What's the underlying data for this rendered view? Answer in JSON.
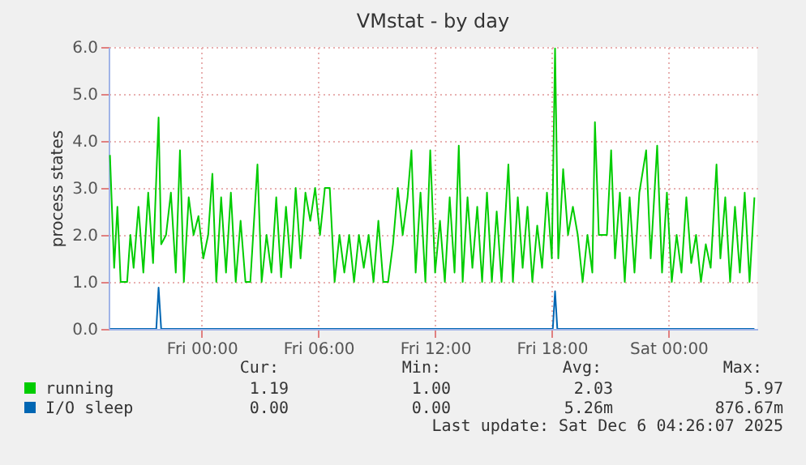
{
  "chart_data": {
    "type": "line",
    "title": "VMstat - by day",
    "ylabel": "process states",
    "xlim": [
      "2025-12-04T19:13",
      "2025-12-06T04:34"
    ],
    "xticks": [
      {
        "value": "2025-12-05T00:00",
        "label": "Fri 00:00"
      },
      {
        "value": "2025-12-05T06:00",
        "label": "Fri 06:00"
      },
      {
        "value": "2025-12-05T12:00",
        "label": "Fri 12:00"
      },
      {
        "value": "2025-12-05T18:00",
        "label": "Fri 18:00"
      },
      {
        "value": "2025-12-06T00:00",
        "label": "Sat 00:00"
      }
    ],
    "ylim": [
      0,
      6
    ],
    "yticks": [
      {
        "value": 0,
        "label": "0.0"
      },
      {
        "value": 1,
        "label": "1.0"
      },
      {
        "value": 2,
        "label": "2.0"
      },
      {
        "value": 3,
        "label": "3.0"
      },
      {
        "value": 4,
        "label": "4.0"
      },
      {
        "value": 5,
        "label": "5.0"
      },
      {
        "value": 6,
        "label": "6.0"
      }
    ],
    "grid": true,
    "legend": "bottom",
    "series": [
      {
        "name": "running",
        "color": "#00cc00",
        "x": [
          "2025-12-04T19:17",
          "2025-12-04T19:30",
          "2025-12-04T19:40",
          "2025-12-04T19:50",
          "2025-12-04T20:10",
          "2025-12-04T20:20",
          "2025-12-04T20:30",
          "2025-12-04T20:45",
          "2025-12-04T21:00",
          "2025-12-04T21:15",
          "2025-12-04T21:30",
          "2025-12-04T21:47",
          "2025-12-04T21:55",
          "2025-12-04T22:10",
          "2025-12-04T22:25",
          "2025-12-04T22:40",
          "2025-12-04T22:53",
          "2025-12-04T23:05",
          "2025-12-04T23:20",
          "2025-12-04T23:35",
          "2025-12-04T23:50",
          "2025-12-05T00:05",
          "2025-12-05T00:20",
          "2025-12-05T00:33",
          "2025-12-05T00:45",
          "2025-12-05T01:00",
          "2025-12-05T01:15",
          "2025-12-05T01:30",
          "2025-12-05T01:45",
          "2025-12-05T02:00",
          "2025-12-05T02:15",
          "2025-12-05T02:30",
          "2025-12-05T02:52",
          "2025-12-05T03:05",
          "2025-12-05T03:20",
          "2025-12-05T03:35",
          "2025-12-05T03:50",
          "2025-12-05T04:05",
          "2025-12-05T04:20",
          "2025-12-05T04:35",
          "2025-12-05T04:50",
          "2025-12-05T05:05",
          "2025-12-05T05:20",
          "2025-12-05T05:35",
          "2025-12-05T05:50",
          "2025-12-05T06:05",
          "2025-12-05T06:20",
          "2025-12-05T06:35",
          "2025-12-05T06:50",
          "2025-12-05T07:05",
          "2025-12-05T07:20",
          "2025-12-05T07:35",
          "2025-12-05T07:50",
          "2025-12-05T08:05",
          "2025-12-05T08:20",
          "2025-12-05T08:35",
          "2025-12-05T08:50",
          "2025-12-05T09:05",
          "2025-12-05T09:20",
          "2025-12-05T09:35",
          "2025-12-05T09:50",
          "2025-12-05T10:05",
          "2025-12-05T10:20",
          "2025-12-05T10:35",
          "2025-12-05T10:47",
          "2025-12-05T11:00",
          "2025-12-05T11:15",
          "2025-12-05T11:30",
          "2025-12-05T11:45",
          "2025-12-05T12:00",
          "2025-12-05T12:15",
          "2025-12-05T12:30",
          "2025-12-05T12:45",
          "2025-12-05T13:00",
          "2025-12-05T13:13",
          "2025-12-05T13:25",
          "2025-12-05T13:40",
          "2025-12-05T13:55",
          "2025-12-05T14:10",
          "2025-12-05T14:25",
          "2025-12-05T14:40",
          "2025-12-05T14:55",
          "2025-12-05T15:10",
          "2025-12-05T15:25",
          "2025-12-05T15:46",
          "2025-12-05T16:00",
          "2025-12-05T16:15",
          "2025-12-05T16:30",
          "2025-12-05T16:45",
          "2025-12-05T17:00",
          "2025-12-05T17:15",
          "2025-12-05T17:30",
          "2025-12-05T17:45",
          "2025-12-05T18:00",
          "2025-12-05T18:10",
          "2025-12-05T18:20",
          "2025-12-05T18:35",
          "2025-12-05T18:50",
          "2025-12-05T19:05",
          "2025-12-05T19:20",
          "2025-12-05T19:35",
          "2025-12-05T19:50",
          "2025-12-05T20:05",
          "2025-12-05T20:13",
          "2025-12-05T20:25",
          "2025-12-05T20:40",
          "2025-12-05T20:50",
          "2025-12-05T21:03",
          "2025-12-05T21:15",
          "2025-12-05T21:30",
          "2025-12-05T21:45",
          "2025-12-05T22:00",
          "2025-12-05T22:15",
          "2025-12-05T22:30",
          "2025-12-05T22:51",
          "2025-12-05T23:05",
          "2025-12-05T23:25",
          "2025-12-05T23:40",
          "2025-12-05T23:55",
          "2025-12-06T00:10",
          "2025-12-06T00:25",
          "2025-12-06T00:40",
          "2025-12-06T00:55",
          "2025-12-06T01:10",
          "2025-12-06T01:25",
          "2025-12-06T01:40",
          "2025-12-06T01:55",
          "2025-12-06T02:10",
          "2025-12-06T02:28",
          "2025-12-06T02:40",
          "2025-12-06T02:55",
          "2025-12-06T03:10",
          "2025-12-06T03:25",
          "2025-12-06T03:40",
          "2025-12-06T03:55",
          "2025-12-06T04:10",
          "2025-12-06T04:25"
        ],
        "values": [
          3.7,
          1.3,
          2.6,
          1.0,
          1.0,
          2.0,
          1.3,
          2.6,
          1.2,
          2.9,
          1.4,
          4.5,
          1.8,
          2.0,
          2.9,
          1.2,
          3.8,
          1.0,
          2.8,
          2.0,
          2.4,
          1.5,
          2.0,
          3.3,
          1.0,
          2.8,
          1.2,
          2.9,
          1.0,
          2.3,
          1.0,
          1.0,
          3.5,
          1.0,
          2.0,
          1.2,
          2.8,
          1.1,
          2.6,
          1.3,
          3.0,
          1.5,
          2.9,
          2.3,
          3.0,
          2.0,
          3.0,
          3.0,
          1.0,
          2.0,
          1.2,
          2.0,
          1.0,
          2.0,
          1.3,
          2.0,
          1.0,
          2.3,
          1.0,
          1.0,
          1.8,
          3.0,
          2.0,
          2.8,
          3.8,
          1.2,
          2.9,
          1.0,
          3.8,
          1.2,
          2.3,
          1.0,
          2.8,
          1.2,
          3.9,
          1.0,
          2.8,
          1.3,
          2.6,
          1.0,
          2.9,
          1.0,
          2.5,
          1.0,
          3.5,
          1.0,
          2.8,
          1.3,
          2.6,
          1.0,
          2.2,
          1.3,
          2.9,
          1.5,
          5.97,
          1.5,
          3.4,
          2.0,
          2.6,
          2.0,
          1.0,
          2.0,
          1.2,
          4.4,
          2.0,
          2.0,
          2.0,
          3.8,
          1.5,
          2.9,
          1.0,
          2.8,
          1.2,
          2.9,
          3.8,
          1.5,
          3.9,
          1.2,
          2.9,
          1.0,
          2.0,
          1.2,
          2.8,
          1.4,
          2.0,
          1.0,
          1.8,
          1.3,
          3.5,
          1.5,
          2.8,
          1.0,
          2.6,
          1.2,
          2.9,
          1.0,
          2.8
        ]
      },
      {
        "name": "I/O sleep",
        "color": "#0066b3",
        "x": [
          "2025-12-04T19:17",
          "2025-12-04T21:40",
          "2025-12-04T21:47",
          "2025-12-04T21:55",
          "2025-12-05T18:03",
          "2025-12-05T18:10",
          "2025-12-05T18:17",
          "2025-12-06T04:25"
        ],
        "values": [
          0,
          0,
          0.88,
          0,
          0,
          0.8,
          0,
          0
        ]
      }
    ],
    "annotations": [
      "Cur:",
      "Min:",
      "Avg:",
      "Max:",
      "1.19",
      "1.00",
      "2.03",
      "5.97",
      "0.00",
      "0.00",
      "5.26m",
      "876.67m",
      "Last update: Sat Dec  6 04:26:07 2025"
    ]
  }
}
